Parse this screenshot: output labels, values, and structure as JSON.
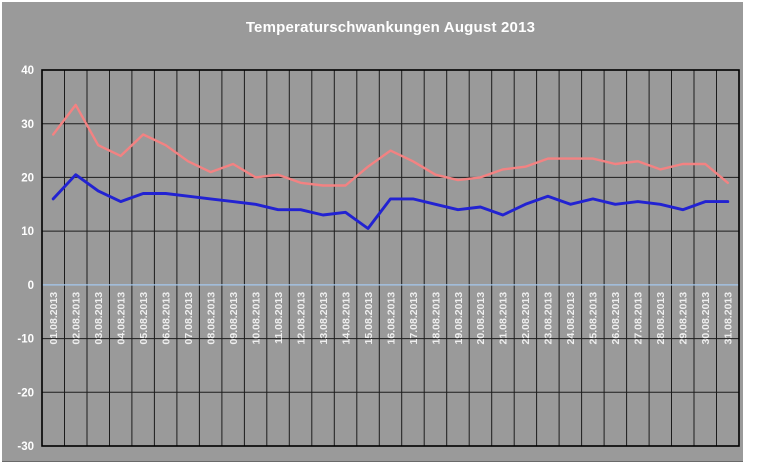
{
  "window": {
    "title": "Temperaturschwankungen August 2013"
  },
  "colors": {
    "page_background": "#ffffff",
    "chart_background": "#9a9a9a",
    "grid": "#1c1c1c",
    "plot_border": "#000000",
    "zero_line": "#a4c8ee",
    "title_text": "#ffffff",
    "y_label_text": "#ffffff",
    "x_label_text": "#efefef",
    "red_series": "#f38282",
    "blue_series": "#2222d2"
  },
  "chart_data": {
    "type": "line",
    "title": "Temperaturschwankungen August 2013",
    "xlabel": "",
    "ylabel": "",
    "ylim": [
      -30,
      40
    ],
    "y_ticks": [
      40,
      30,
      20,
      10,
      0,
      -10,
      -20,
      -30
    ],
    "grid": true,
    "legend": false,
    "x_label_rotation": -90,
    "categories": [
      "01.08.2013",
      "02.08.2013",
      "03.08.2013",
      "04.08.2013",
      "05.08.2013",
      "06.08.2013",
      "07.08.2013",
      "08.08.2013",
      "09.08.2013",
      "10.08.2013",
      "11.08.2013",
      "12.08.2013",
      "13.08.2013",
      "14.08.2013",
      "15.08.2013",
      "16.08.2013",
      "17.08.2013",
      "18.08.2013",
      "19.08.2013",
      "20.08.2013",
      "21.08.2013",
      "22.08.2013",
      "23.08.2013",
      "24.08.2013",
      "25.08.2013",
      "26.08.2013",
      "27.08.2013",
      "28.08.2013",
      "29.08.2013",
      "30.08.2013",
      "31.08.2013"
    ],
    "series": [
      {
        "name": "red-series",
        "color": "#f38282",
        "width": 2.4,
        "values": [
          28,
          33.5,
          26,
          24,
          28,
          26,
          23,
          21,
          22.5,
          20,
          20.5,
          19,
          18.5,
          18.5,
          22,
          25,
          23,
          20.5,
          19.5,
          20,
          21.5,
          22,
          23.5,
          23.5,
          23.5,
          22.5,
          23,
          21.5,
          22.5,
          22.5,
          19
        ]
      },
      {
        "name": "blue-series",
        "color": "#2222d2",
        "width": 2.9,
        "values": [
          16,
          20.5,
          17.5,
          15.5,
          17,
          17,
          16.5,
          16,
          15.5,
          15,
          14,
          14,
          13,
          13.5,
          10.5,
          16,
          16,
          15,
          14,
          14.5,
          13,
          15,
          16.5,
          15,
          16,
          15,
          15.5,
          15,
          14,
          15.5,
          15.5
        ]
      }
    ]
  }
}
